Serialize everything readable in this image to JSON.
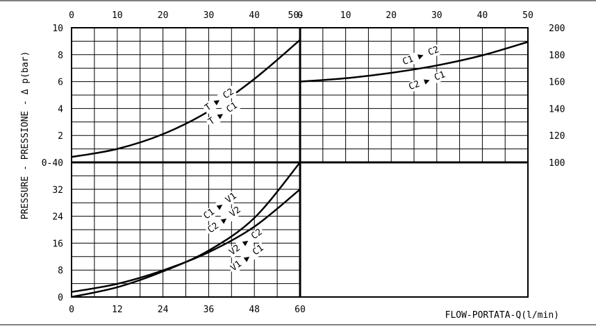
{
  "chart_data": {
    "type": "line",
    "ylabel": "PRESSURE - PRESSIONE - Δ p(bar)",
    "xlabel": "FLOW-PORTATA-Q(l/min)",
    "colors": {
      "line": "#000000",
      "background": "#ffffff"
    },
    "panels": [
      {
        "id": "top-left",
        "x_ticks": [
          "0",
          "10",
          "20",
          "30",
          "40",
          "50"
        ],
        "y_ticks": [
          "0",
          "2",
          "4",
          "6",
          "8",
          "10"
        ],
        "xlim": [
          0,
          50
        ],
        "ylim": [
          0,
          10
        ],
        "grid": true,
        "series": [
          {
            "name": "T ▶ C2 / T ▶ C1",
            "x": [
              0,
              10,
              20,
              30,
              40,
              50
            ],
            "y": [
              0.4,
              1.0,
              2.1,
              3.8,
              6.2,
              9.1
            ]
          }
        ],
        "annotations": [
          "T ▶ C2",
          "T ▶ C1"
        ]
      },
      {
        "id": "top-right",
        "x_ticks": [
          "0",
          "10",
          "20",
          "30",
          "40",
          "50"
        ],
        "y_ticks": [
          "100",
          "120",
          "140",
          "160",
          "180",
          "200"
        ],
        "xlim": [
          0,
          50
        ],
        "ylim": [
          100,
          200
        ],
        "grid": true,
        "series": [
          {
            "name": "C1 ▶ C2 / C2 ▶ C1",
            "x": [
              0,
              10,
              20,
              30,
              40,
              50
            ],
            "y": [
              160,
              162.5,
              166.5,
              172,
              179.5,
              189.5
            ]
          }
        ],
        "annotations": [
          "C1 ▶ C2",
          "C2 ▶ C1"
        ]
      },
      {
        "id": "bottom-left",
        "x_ticks": [
          "0",
          "12",
          "24",
          "36",
          "48",
          "60"
        ],
        "y_ticks": [
          "0",
          "8",
          "16",
          "24",
          "32",
          "40"
        ],
        "xlim": [
          0,
          60
        ],
        "ylim": [
          0,
          40
        ],
        "grid": true,
        "series": [
          {
            "name": "C1 ▶ V1 / C2 ▶ V2",
            "x": [
              0,
              12,
              24,
              36,
              48,
              60
            ],
            "y": [
              0,
              2.9,
              7.6,
              13.8,
              23.5,
              40
            ]
          },
          {
            "name": "V2 ▶ C2 / V1 ▶ C1",
            "x": [
              0,
              12,
              24,
              36,
              48,
              60
            ],
            "y": [
              1.5,
              3.9,
              7.9,
              13.3,
              20.9,
              32
            ]
          }
        ],
        "annotations": [
          "C1 ▶ V1",
          "C2 ▶ V2",
          "V2 ▶ C2",
          "V1 ▶ C1"
        ]
      }
    ]
  }
}
